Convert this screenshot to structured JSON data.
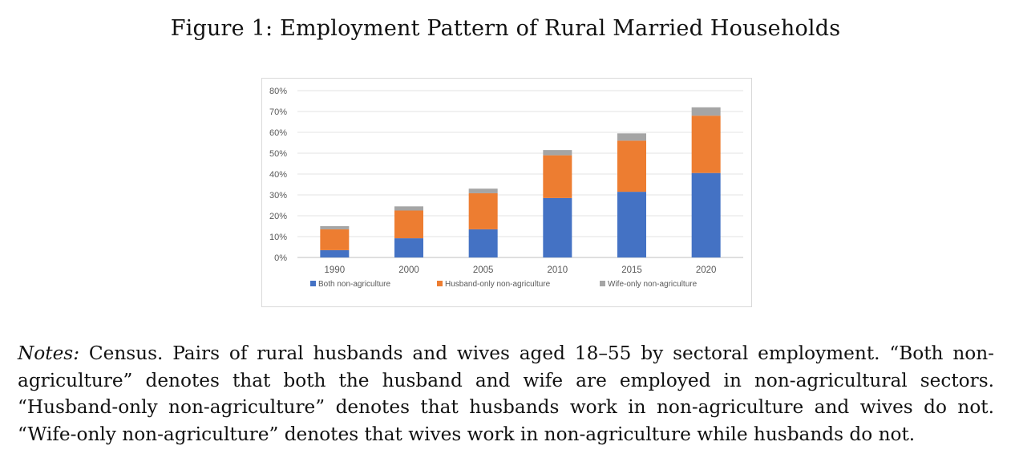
{
  "figure_title": "Figure 1: Employment Pattern of Rural Married Households",
  "notes": {
    "lead": "Notes:",
    "body": "Census. Pairs of rural husbands and wives aged 18–55 by sectoral employment. “Both non-agriculture” denotes that both the husband and wife are employed in non-agricultural sectors. “Husband-only non-agriculture” denotes that husbands work in non-agriculture and wives do not. “Wife-only non-agriculture” denotes that wives work in non-agriculture while husbands do not."
  },
  "chart_data": {
    "type": "bar",
    "stacked": true,
    "title": "",
    "xlabel": "",
    "ylabel": "",
    "categories": [
      "1990",
      "2000",
      "2005",
      "2010",
      "2015",
      "2020"
    ],
    "series": [
      {
        "name": "Both non-agriculture",
        "color": "#4472C4",
        "values": [
          3.5,
          9.2,
          13.5,
          28.5,
          31.5,
          40.5
        ]
      },
      {
        "name": "Husband-only non-agriculture",
        "color": "#ED7D31",
        "values": [
          10.0,
          13.3,
          17.3,
          20.5,
          24.5,
          27.5
        ]
      },
      {
        "name": "Wife-only non-agriculture",
        "color": "#A5A5A5",
        "values": [
          1.5,
          2.0,
          2.2,
          2.5,
          3.5,
          4.0
        ]
      }
    ],
    "ylim": [
      0,
      80
    ],
    "y_ticks": [
      "0%",
      "10%",
      "20%",
      "30%",
      "40%",
      "50%",
      "60%",
      "70%",
      "80%"
    ],
    "grid": true,
    "legend_position": "bottom"
  }
}
